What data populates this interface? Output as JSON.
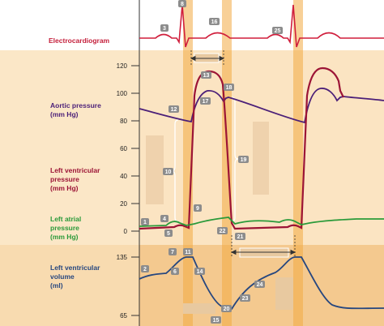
{
  "colors": {
    "bg_band": "#fbe4c2",
    "bg_band_dark": "#f4c98f",
    "highlight": "#f3a942",
    "highlight_light": "#f7c27a",
    "ecg": "#d01e3c",
    "aortic": "#4b1f78",
    "ventricular": "#9c1436",
    "atrial": "#2a9a3a",
    "volume": "#27477f",
    "label_text": "#c41e3a",
    "badge": "#8c8c8c"
  },
  "labels": {
    "ecg": [
      "Electrocardiogram"
    ],
    "aortic": [
      "Aortic pressure",
      "(mm Hg)"
    ],
    "ventricular": [
      "Left ventricular",
      "pressure",
      "(mm Hg)"
    ],
    "atrial": [
      "Left atrial",
      "pressure",
      "(mm Hg)"
    ],
    "volume": [
      "Left ventricular",
      "volume",
      "(ml)"
    ]
  },
  "pressure_ticks": [
    "120",
    "100",
    "80",
    "60",
    "40",
    "20",
    "0"
  ],
  "volume_ticks": [
    "135",
    "65"
  ],
  "badges": [
    "1",
    "2",
    "3",
    "4",
    "5",
    "6",
    "7",
    "8",
    "9",
    "10",
    "11",
    "12",
    "13",
    "14",
    "15",
    "16",
    "17",
    "18",
    "19",
    "20",
    "21",
    "22",
    "23",
    "24",
    "25"
  ],
  "icons": [
    "double-arrow-icon",
    "bracket-icon",
    "blank-label-box"
  ]
}
